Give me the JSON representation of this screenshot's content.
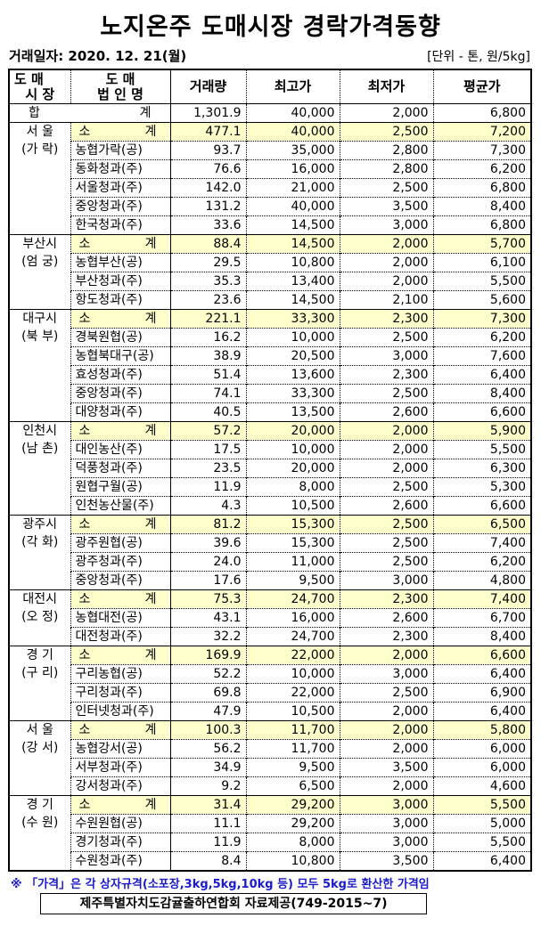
{
  "title": "노지온주 도매시장 경락가격동향",
  "date": "거래일자: 2020. 12. 21(월)",
  "unit": "[단위 - 톤, 원/5kg]",
  "headers": {
    "market": [
      "도 매",
      "시 장"
    ],
    "corp": [
      "도 매",
      "법 인 명"
    ],
    "volume": "거래량",
    "max": "최고가",
    "min": "최저가",
    "avg": "평균가"
  },
  "total": {
    "label_a": "합",
    "label_b": "계",
    "volume": "1,301.9",
    "max": "40,000",
    "min": "2,000",
    "avg": "6,800"
  },
  "subtotal_label": [
    "소",
    "계"
  ],
  "groups": [
    {
      "market": [
        "서 울",
        "(가 락)"
      ],
      "rows": [
        [
          "소 계",
          "477.1",
          "40,000",
          "2,500",
          "7,200"
        ],
        [
          "농협가락(공)",
          "93.7",
          "35,000",
          "2,800",
          "7,300"
        ],
        [
          "동화청과(주)",
          "76.6",
          "16,000",
          "2,800",
          "6,200"
        ],
        [
          "서울청과(주)",
          "142.0",
          "21,000",
          "2,500",
          "6,800"
        ],
        [
          "중앙청과(주)",
          "131.2",
          "40,000",
          "3,500",
          "8,400"
        ],
        [
          "한국청과(주)",
          "33.6",
          "14,500",
          "3,000",
          "6,800"
        ]
      ]
    },
    {
      "market": [
        "부산시",
        "(엄 궁)"
      ],
      "rows": [
        [
          "소 계",
          "88.4",
          "14,500",
          "2,000",
          "5,700"
        ],
        [
          "농협부산(공)",
          "29.5",
          "10,800",
          "2,000",
          "6,100"
        ],
        [
          "부산청과(주)",
          "35.3",
          "13,400",
          "2,000",
          "5,500"
        ],
        [
          "항도청과(주)",
          "23.6",
          "14,500",
          "2,100",
          "5,600"
        ]
      ]
    },
    {
      "market": [
        "대구시",
        "(북 부)"
      ],
      "rows": [
        [
          "소 계",
          "221.1",
          "33,300",
          "2,300",
          "7,300"
        ],
        [
          "경북원협(공)",
          "16.2",
          "10,000",
          "2,500",
          "6,200"
        ],
        [
          "농협북대구(공)",
          "38.9",
          "20,500",
          "3,000",
          "7,600"
        ],
        [
          "효성청과(주)",
          "51.4",
          "13,600",
          "2,300",
          "6,400"
        ],
        [
          "중앙청과(주)",
          "74.1",
          "33,300",
          "2,500",
          "8,400"
        ],
        [
          "대양청과(주)",
          "40.5",
          "13,500",
          "2,600",
          "6,600"
        ]
      ]
    },
    {
      "market": [
        "인천시",
        "(남 촌)"
      ],
      "rows": [
        [
          "소 계",
          "57.2",
          "20,000",
          "2,000",
          "5,900"
        ],
        [
          "대인농산(주)",
          "17.5",
          "10,000",
          "2,000",
          "5,500"
        ],
        [
          "덕풍청과(주)",
          "23.5",
          "20,000",
          "2,000",
          "6,300"
        ],
        [
          "원협구월(공)",
          "11.9",
          "8,000",
          "2,500",
          "5,300"
        ],
        [
          "인천농산물(주)",
          "4.3",
          "10,500",
          "2,600",
          "6,600"
        ]
      ]
    },
    {
      "market": [
        "광주시",
        "(각 화)"
      ],
      "rows": [
        [
          "소 계",
          "81.2",
          "15,300",
          "2,500",
          "6,500"
        ],
        [
          "광주원협(공)",
          "39.6",
          "15,300",
          "2,500",
          "7,400"
        ],
        [
          "광주청과(주)",
          "24.0",
          "11,000",
          "2,500",
          "6,200"
        ],
        [
          "중앙청과(주)",
          "17.6",
          "9,500",
          "3,000",
          "4,800"
        ]
      ]
    },
    {
      "market": [
        "대전시",
        "(오 정)"
      ],
      "rows": [
        [
          "소 계",
          "75.3",
          "24,700",
          "2,300",
          "7,400"
        ],
        [
          "농협대전(공)",
          "43.1",
          "16,000",
          "2,600",
          "6,700"
        ],
        [
          "대전청과(주)",
          "32.2",
          "24,700",
          "2,300",
          "8,400"
        ]
      ]
    },
    {
      "market": [
        "경 기",
        "(구 리)"
      ],
      "rows": [
        [
          "소 계",
          "169.9",
          "22,000",
          "2,000",
          "6,600"
        ],
        [
          "구리농협(공)",
          "52.2",
          "10,000",
          "3,000",
          "6,400"
        ],
        [
          "구리청과(주)",
          "69.8",
          "22,000",
          "2,500",
          "6,900"
        ],
        [
          "인터넷청과(주)",
          "47.9",
          "10,500",
          "2,000",
          "6,400"
        ]
      ]
    },
    {
      "market": [
        "서 울",
        "(강 서)"
      ],
      "rows": [
        [
          "소 계",
          "100.3",
          "11,700",
          "2,000",
          "5,800"
        ],
        [
          "농협강서(공)",
          "56.2",
          "11,700",
          "2,000",
          "6,000"
        ],
        [
          "서부청과(주)",
          "34.9",
          "9,500",
          "3,500",
          "6,000"
        ],
        [
          "강서청과(주)",
          "9.2",
          "6,500",
          "2,000",
          "4,600"
        ]
      ]
    },
    {
      "market": [
        "경 기",
        "(수 원)"
      ],
      "rows": [
        [
          "소 계",
          "31.4",
          "29,200",
          "3,000",
          "5,500"
        ],
        [
          "수원원협(공)",
          "11.1",
          "29,200",
          "3,000",
          "5,000"
        ],
        [
          "경기청과(주)",
          "11.9",
          "8,000",
          "3,000",
          "5,500"
        ],
        [
          "수원청과(주)",
          "8.4",
          "10,800",
          "3,500",
          "6,400"
        ]
      ]
    }
  ],
  "note": "※ 「가격」은 각 상자규격(소포장,3kg,5kg,10kg 등) 모두 5kg로 환산한 가격임",
  "source": "제주특별자치도감귤출하연합회 자료제공(749-2015~7)",
  "colors": {
    "subtotal_bg": "#ffffcc",
    "note": "#1a1acc"
  }
}
